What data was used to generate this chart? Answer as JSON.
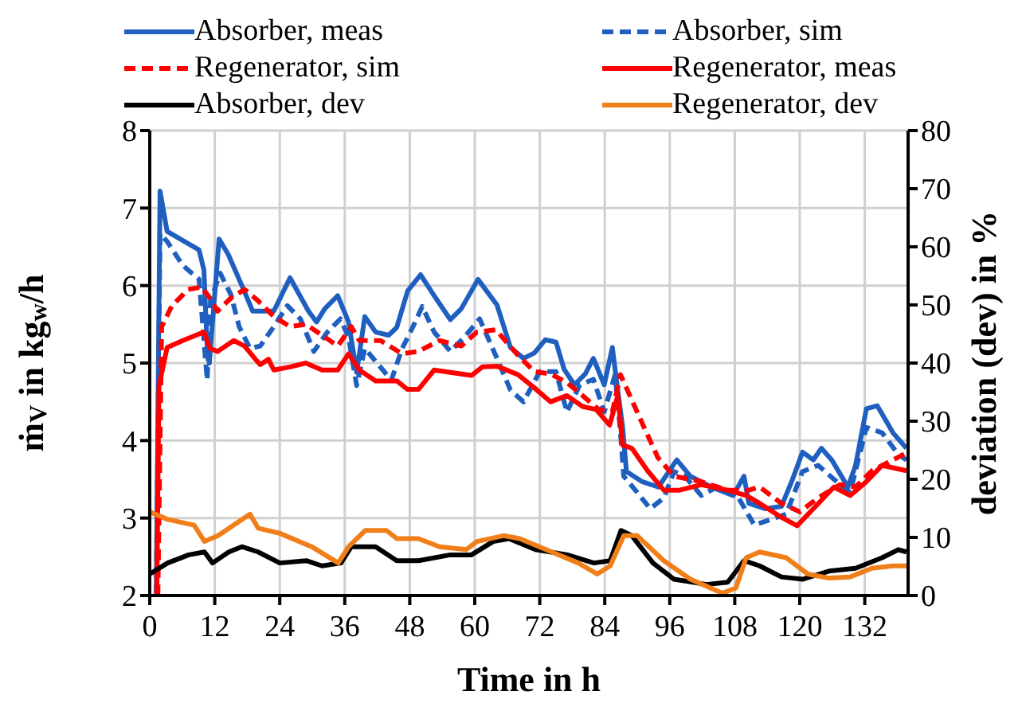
{
  "chart_data": {
    "type": "line",
    "xlabel": "Time in h",
    "ylabel": "ṁ$_{V}$ in kg$_{w}$/h",
    "y2label": "deviation (dev) in %",
    "xlim": [
      0,
      140
    ],
    "xticks": [
      0,
      12,
      24,
      36,
      48,
      60,
      72,
      84,
      96,
      108,
      120,
      132
    ],
    "ylim": [
      2,
      8
    ],
    "yticks": [
      2,
      3,
      4,
      5,
      6,
      7,
      8
    ],
    "y2lim": [
      0,
      80
    ],
    "y2ticks": [
      0,
      10,
      20,
      30,
      40,
      50,
      60,
      70,
      80
    ],
    "grid": true,
    "legend": "top",
    "series": [
      {
        "name": "Absorber, meas",
        "color": "#1f5fbf",
        "line_style": "solid",
        "x": [
          1.2,
          1.9,
          3.2,
          9.1,
          10,
          10.6,
          11,
          12.8,
          14.5,
          17,
          19,
          22.9,
          25.9,
          29.3,
          30.8,
          32.3,
          34.7,
          36.7,
          38.2,
          39.7,
          41.7,
          44.1,
          45.6,
          47.6,
          50,
          52.5,
          55.5,
          57.5,
          60.6,
          64.1,
          66.6,
          69,
          71,
          73,
          75,
          76.5,
          78.4,
          80.4,
          81.9,
          83.9,
          85.4,
          86.4,
          87.3,
          88,
          90.9,
          93.9,
          97.3,
          99.8,
          103.7,
          107.7,
          109.7,
          110.6,
          113.6,
          116.6,
          118.5,
          120.5,
          122.5,
          124,
          125.9,
          128.9,
          130.3,
          132.3,
          134.3,
          137.2,
          139.7
        ],
        "values": [
          2,
          7.22,
          6.7,
          6.46,
          6.2,
          5.2,
          5.0,
          6.6,
          6.4,
          6.0,
          5.67,
          5.67,
          6.1,
          5.67,
          5.53,
          5.7,
          5.87,
          5.53,
          4.88,
          5.6,
          5.4,
          5.36,
          5.46,
          5.93,
          6.14,
          5.87,
          5.56,
          5.7,
          6.08,
          5.75,
          5.2,
          5.06,
          5.13,
          5.3,
          5.27,
          4.92,
          4.72,
          4.86,
          5.06,
          4.72,
          5.2,
          4.65,
          4.17,
          3.6,
          3.47,
          3.4,
          3.75,
          3.54,
          3.4,
          3.29,
          3.54,
          3.19,
          3.12,
          3.15,
          3.47,
          3.85,
          3.75,
          3.9,
          3.75,
          3.4,
          3.68,
          4.41,
          4.45,
          4.1,
          3.9
        ]
      },
      {
        "name": "Absorber, sim",
        "color": "#1f5fbf",
        "line_style": "dashed",
        "x": [
          1.2,
          1.9,
          3.2,
          6.1,
          9.1,
          10.6,
          11.2,
          13,
          15,
          16.5,
          18.5,
          20.4,
          22.9,
          25.4,
          27.8,
          30.3,
          32.8,
          35.2,
          36.7,
          38.2,
          39.7,
          42.2,
          44.6,
          46.6,
          48.6,
          50.3,
          52.5,
          55.5,
          58.4,
          60.9,
          64.1,
          66.6,
          69,
          72,
          75,
          77,
          79.4,
          81.9,
          83.9,
          85.9,
          86.9,
          87.5,
          90,
          92.4,
          94.9,
          96.8,
          98.8,
          101.8,
          104.7,
          108.7,
          111.6,
          114.6,
          117.5,
          120.5,
          123.4,
          126.3,
          129.3,
          132.3,
          135.2,
          138.2,
          139.7
        ],
        "values": [
          2,
          6.67,
          6.57,
          6.26,
          6.08,
          4.78,
          5.8,
          6.16,
          5.88,
          5.47,
          5.19,
          5.22,
          5.47,
          5.74,
          5.57,
          5.15,
          5.4,
          5.57,
          5.33,
          4.71,
          5.19,
          4.98,
          4.78,
          5.19,
          5.47,
          5.73,
          5.4,
          5.15,
          5.36,
          5.57,
          5.06,
          4.65,
          4.5,
          4.89,
          4.89,
          4.37,
          4.72,
          4.79,
          4.37,
          4.85,
          4.1,
          3.54,
          3.33,
          3.12,
          3.26,
          3.6,
          3.54,
          3.29,
          3.4,
          3.26,
          2.91,
          2.98,
          3.05,
          3.6,
          3.68,
          3.5,
          3.33,
          4.17,
          4.1,
          3.82,
          3.75
        ]
      },
      {
        "name": "Regenerator, sim",
        "color": "#ff0000",
        "line_style": "dashed",
        "x": [
          1.5,
          2.2,
          4.1,
          7.1,
          9.6,
          11.1,
          12.5,
          15,
          17.5,
          19.9,
          22.9,
          25.9,
          28.8,
          31.8,
          34.7,
          37.2,
          38.7,
          42.6,
          46.6,
          49.6,
          53.5,
          57.5,
          60.4,
          63.9,
          65,
          68,
          71,
          74,
          77,
          79.9,
          82.9,
          85.4,
          86.9,
          90.8,
          93.8,
          96.8,
          101.8,
          106.7,
          110.6,
          112.6,
          116.6,
          120,
          123.4,
          127.4,
          130.3,
          133.3,
          137.2,
          140
        ],
        "values": [
          2,
          5.47,
          5.74,
          5.95,
          5.98,
          5.84,
          5.67,
          5.84,
          5.95,
          5.81,
          5.6,
          5.47,
          5.5,
          5.36,
          5.22,
          5.47,
          5.29,
          5.29,
          5.12,
          5.15,
          5.29,
          5.22,
          5.4,
          5.43,
          5.34,
          5.1,
          4.89,
          4.86,
          4.75,
          4.58,
          4.4,
          4.37,
          4.85,
          4.24,
          3.78,
          3.54,
          3.47,
          3.36,
          3.36,
          3.4,
          3.19,
          3.08,
          3.26,
          3.43,
          3.4,
          3.61,
          3.75,
          3.85
        ]
      },
      {
        "name": "Regenerator, meas",
        "color": "#ff0000",
        "line_style": "solid",
        "x": [
          1.3,
          1.7,
          3.2,
          6.1,
          10,
          11.1,
          12.5,
          15.5,
          17.5,
          19.5,
          20.4,
          21.9,
          22.9,
          25.9,
          28.8,
          31.8,
          34.7,
          36.7,
          38.7,
          41.7,
          45.6,
          47.6,
          49.6,
          52.5,
          55.5,
          59.4,
          61.4,
          64.1,
          68,
          71,
          74,
          77,
          79.9,
          82.4,
          84.9,
          86.4,
          87.3,
          89,
          91.9,
          94.9,
          97.8,
          101.8,
          106.7,
          110.1,
          112.6,
          116.6,
          119.5,
          122.5,
          126.3,
          129.3,
          132.3,
          135.2,
          139.7
        ],
        "values": [
          2,
          4.7,
          5.2,
          5.29,
          5.4,
          5.19,
          5.15,
          5.29,
          5.22,
          5.05,
          4.98,
          5.05,
          4.91,
          4.95,
          5.0,
          4.91,
          4.91,
          5.12,
          4.91,
          4.77,
          4.77,
          4.66,
          4.66,
          4.91,
          4.88,
          4.84,
          4.95,
          4.96,
          4.85,
          4.68,
          4.5,
          4.58,
          4.44,
          4.4,
          4.2,
          4.58,
          3.94,
          3.9,
          3.61,
          3.36,
          3.36,
          3.43,
          3.36,
          3.29,
          3.19,
          3.01,
          2.9,
          3.12,
          3.4,
          3.29,
          3.47,
          3.68,
          3.61
        ]
      },
      {
        "name": "Absorber, dev",
        "color": "#000000",
        "line_style": "solid",
        "axis": "y2",
        "x": [
          0,
          3.3,
          7.2,
          10.1,
          11.6,
          14.6,
          17,
          20,
          24,
          28.9,
          31.8,
          35.3,
          37.2,
          41.7,
          45.6,
          49.6,
          55.5,
          59.4,
          63.4,
          66.3,
          71.2,
          77.1,
          82,
          85,
          87,
          89,
          92.9,
          96.8,
          102.8,
          106.7,
          109.7,
          112.6,
          116.6,
          120.5,
          125.4,
          130.3,
          135.2,
          138.2,
          139.7
        ],
        "values": [
          3.7,
          5.6,
          7.0,
          7.5,
          5.6,
          7.5,
          8.4,
          7.5,
          5.6,
          6.0,
          5.1,
          5.6,
          8.4,
          8.4,
          6.0,
          6.0,
          7.0,
          7.0,
          9.3,
          9.8,
          7.9,
          7.0,
          5.6,
          6.0,
          11.2,
          10.3,
          5.6,
          2.8,
          1.9,
          2.3,
          6.0,
          5.1,
          3.2,
          2.8,
          4.2,
          4.7,
          6.5,
          7.9,
          7.5
        ]
      },
      {
        "name": "Regenerator, dev",
        "color": "#f07f1a",
        "line_style": "solid",
        "axis": "y2",
        "x": [
          0,
          3.3,
          8.2,
          10.1,
          12.6,
          18.5,
          20,
          24,
          29.9,
          34.8,
          36.7,
          39.8,
          43.7,
          45.6,
          49.6,
          53.5,
          58.4,
          60.4,
          65.3,
          68.3,
          74.2,
          79.1,
          82.6,
          85,
          87.5,
          90,
          94.9,
          99.8,
          105.7,
          108.2,
          110.1,
          112.6,
          117.5,
          121.5,
          125.4,
          129.3,
          133.3,
          137.2,
          139.7
        ],
        "values": [
          14.4,
          13.1,
          12.1,
          9.3,
          10.3,
          14.0,
          11.6,
          10.7,
          8.4,
          5.6,
          8.4,
          11.2,
          11.2,
          9.8,
          9.8,
          8.4,
          7.9,
          9.3,
          10.3,
          9.8,
          7.5,
          5.6,
          3.7,
          5.1,
          10.3,
          10.3,
          6.0,
          2.8,
          0.4,
          1.3,
          6.5,
          7.5,
          6.5,
          3.7,
          3.0,
          3.2,
          4.7,
          5.1,
          5.1
        ]
      }
    ]
  }
}
